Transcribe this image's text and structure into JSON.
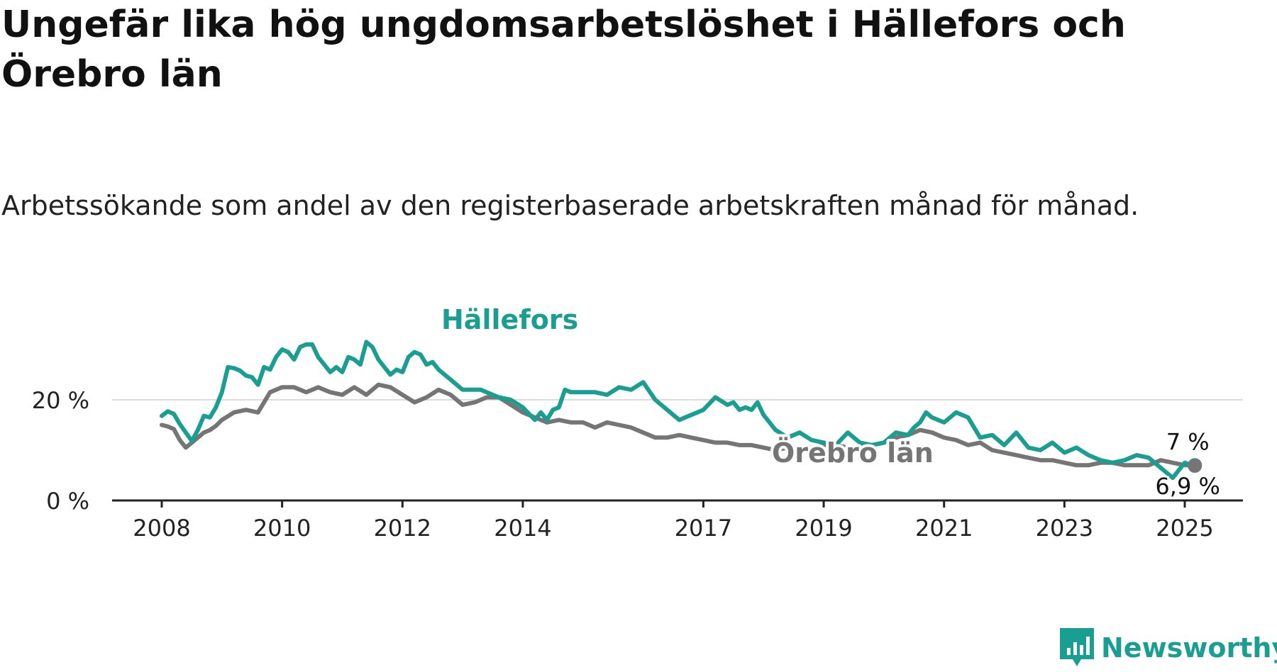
{
  "title": "Ungefär lika hög ungdomsarbetslöshet i Hällefors och Örebro län",
  "subtitle": "Arbetssökande som andel av den registerbaserade arbetskraften månad för månad.",
  "brand": {
    "name": "Newsworthy",
    "color": "#1a9e92"
  },
  "chart_data": {
    "type": "line",
    "title": "Ungefär lika hög ungdomsarbetslöshet i Hällefors och Örebro län",
    "subtitle": "Arbetssökande som andel av den registerbaserade arbetskraften månad för månad.",
    "xlabel": "",
    "ylabel": "",
    "xlim": [
      2008.0,
      2025.167
    ],
    "ylim": [
      0,
      30
    ],
    "x_ticks": [
      {
        "value": 2008,
        "label": "2008"
      },
      {
        "value": 2010,
        "label": "2010"
      },
      {
        "value": 2012,
        "label": "2012"
      },
      {
        "value": 2014,
        "label": "2014"
      },
      {
        "value": 2017,
        "label": "2017"
      },
      {
        "value": 2019,
        "label": "2019"
      },
      {
        "value": 2021,
        "label": "2021"
      },
      {
        "value": 2023,
        "label": "2023"
      },
      {
        "value": 2025,
        "label": "2025"
      }
    ],
    "y_ticks": [
      {
        "value": 0,
        "label": "0 %"
      },
      {
        "value": 20,
        "label": "20 %"
      }
    ],
    "grid": true,
    "series": [
      {
        "name": "Hällefors",
        "color": "#1a9e92",
        "end_label": "7 %",
        "x": [
          2008.0,
          2008.1,
          2008.2,
          2008.3,
          2008.4,
          2008.5,
          2008.6,
          2008.7,
          2008.8,
          2008.9,
          2009.0,
          2009.1,
          2009.2,
          2009.3,
          2009.4,
          2009.5,
          2009.6,
          2009.7,
          2009.8,
          2009.9,
          2010.0,
          2010.1,
          2010.2,
          2010.3,
          2010.4,
          2010.5,
          2010.6,
          2010.7,
          2010.8,
          2010.9,
          2011.0,
          2011.1,
          2011.2,
          2011.3,
          2011.4,
          2011.5,
          2011.6,
          2011.7,
          2011.8,
          2011.9,
          2012.0,
          2012.1,
          2012.2,
          2012.3,
          2012.4,
          2012.5,
          2012.6,
          2012.8,
          2013.0,
          2013.3,
          2013.6,
          2013.8,
          2014.0,
          2014.2,
          2014.3,
          2014.4,
          2014.5,
          2014.6,
          2014.7,
          2014.8,
          2015.0,
          2015.2,
          2015.4,
          2015.6,
          2015.8,
          2016.0,
          2016.2,
          2016.4,
          2016.6,
          2016.8,
          2016.9,
          2017.0,
          2017.2,
          2017.4,
          2017.5,
          2017.6,
          2017.7,
          2017.8,
          2017.9,
          2018.0,
          2018.2,
          2018.4,
          2018.6,
          2018.8,
          2019.0,
          2019.2,
          2019.4,
          2019.6,
          2019.8,
          2020.0,
          2020.2,
          2020.4,
          2020.5,
          2020.6,
          2020.7,
          2020.8,
          2021.0,
          2021.2,
          2021.4,
          2021.6,
          2021.8,
          2022.0,
          2022.2,
          2022.4,
          2022.6,
          2022.8,
          2023.0,
          2023.2,
          2023.4,
          2023.6,
          2023.8,
          2024.0,
          2024.2,
          2024.4,
          2024.6,
          2024.8,
          2025.0,
          2025.1,
          2025.167
        ],
        "y": [
          16.8,
          17.7,
          17.2,
          15.2,
          13.5,
          11.8,
          14.0,
          16.8,
          16.5,
          18.5,
          21.5,
          26.5,
          26.3,
          25.8,
          24.8,
          24.5,
          23.0,
          26.5,
          26.0,
          28.5,
          30.0,
          29.5,
          28.0,
          30.5,
          31.0,
          31.0,
          28.5,
          27.0,
          25.5,
          26.5,
          25.5,
          28.5,
          28.0,
          27.0,
          31.5,
          30.5,
          28.0,
          26.5,
          25.0,
          26.0,
          25.5,
          28.5,
          29.5,
          29.0,
          27.0,
          27.5,
          26.0,
          24.0,
          22.0,
          22.0,
          20.5,
          20.0,
          18.5,
          16.0,
          17.5,
          16.0,
          18.0,
          18.5,
          22.0,
          21.5,
          21.5,
          21.5,
          21.0,
          22.5,
          22.0,
          23.5,
          20.0,
          18.0,
          16.0,
          17.0,
          17.5,
          18.0,
          20.5,
          19.0,
          19.5,
          18.0,
          18.5,
          18.0,
          19.5,
          17.0,
          14.0,
          12.5,
          13.5,
          12.0,
          11.5,
          11.0,
          13.5,
          11.5,
          11.0,
          11.5,
          13.5,
          13.0,
          14.5,
          15.5,
          17.5,
          16.5,
          15.5,
          17.5,
          16.5,
          12.5,
          13.0,
          11.0,
          13.5,
          10.5,
          10.0,
          11.5,
          9.5,
          10.5,
          9.0,
          8.0,
          7.5,
          8.0,
          9.0,
          8.5,
          6.5,
          4.5,
          7.5,
          7.0,
          7.0
        ]
      },
      {
        "name": "Örebro län",
        "color": "#757575",
        "end_label": "6,9 %",
        "x": [
          2008.0,
          2008.1,
          2008.2,
          2008.3,
          2008.4,
          2008.5,
          2008.6,
          2008.7,
          2008.8,
          2008.9,
          2009.0,
          2009.2,
          2009.4,
          2009.6,
          2009.8,
          2010.0,
          2010.2,
          2010.4,
          2010.6,
          2010.8,
          2011.0,
          2011.2,
          2011.4,
          2011.6,
          2011.8,
          2012.0,
          2012.2,
          2012.4,
          2012.6,
          2012.8,
          2013.0,
          2013.2,
          2013.4,
          2013.6,
          2013.8,
          2014.0,
          2014.2,
          2014.4,
          2014.6,
          2014.8,
          2015.0,
          2015.2,
          2015.4,
          2015.6,
          2015.8,
          2016.0,
          2016.2,
          2016.4,
          2016.6,
          2016.8,
          2017.0,
          2017.2,
          2017.4,
          2017.6,
          2017.8,
          2018.0,
          2018.2,
          2018.4,
          2018.6,
          2018.8,
          2019.0,
          2019.2,
          2019.4,
          2019.6,
          2019.8,
          2020.0,
          2020.2,
          2020.4,
          2020.6,
          2020.8,
          2021.0,
          2021.2,
          2021.4,
          2021.6,
          2021.8,
          2022.0,
          2022.2,
          2022.4,
          2022.6,
          2022.8,
          2023.0,
          2023.2,
          2023.4,
          2023.6,
          2023.8,
          2024.0,
          2024.2,
          2024.4,
          2024.6,
          2024.8,
          2025.0,
          2025.1,
          2025.167
        ],
        "y": [
          15.0,
          14.7,
          14.2,
          12.0,
          10.5,
          11.5,
          12.5,
          13.5,
          14.0,
          14.8,
          16.0,
          17.5,
          18.0,
          17.5,
          21.5,
          22.5,
          22.5,
          21.5,
          22.5,
          21.5,
          21.0,
          22.5,
          21.0,
          23.0,
          22.5,
          21.0,
          19.5,
          20.5,
          22.0,
          21.0,
          19.0,
          19.5,
          20.5,
          20.5,
          19.0,
          17.5,
          16.5,
          15.5,
          16.0,
          15.5,
          15.5,
          14.5,
          15.5,
          15.0,
          14.5,
          13.5,
          12.5,
          12.5,
          13.0,
          12.5,
          12.0,
          11.5,
          11.5,
          11.0,
          11.0,
          10.5,
          10.0,
          10.5,
          10.5,
          10.5,
          11.0,
          11.0,
          10.5,
          10.5,
          11.0,
          11.5,
          12.5,
          13.0,
          14.0,
          13.5,
          12.5,
          12.0,
          11.0,
          11.5,
          10.0,
          9.5,
          9.0,
          8.5,
          8.0,
          8.0,
          7.5,
          7.0,
          7.0,
          7.5,
          7.5,
          7.0,
          7.0,
          7.0,
          8.0,
          7.5,
          7.0,
          7.0,
          6.9
        ]
      }
    ]
  }
}
